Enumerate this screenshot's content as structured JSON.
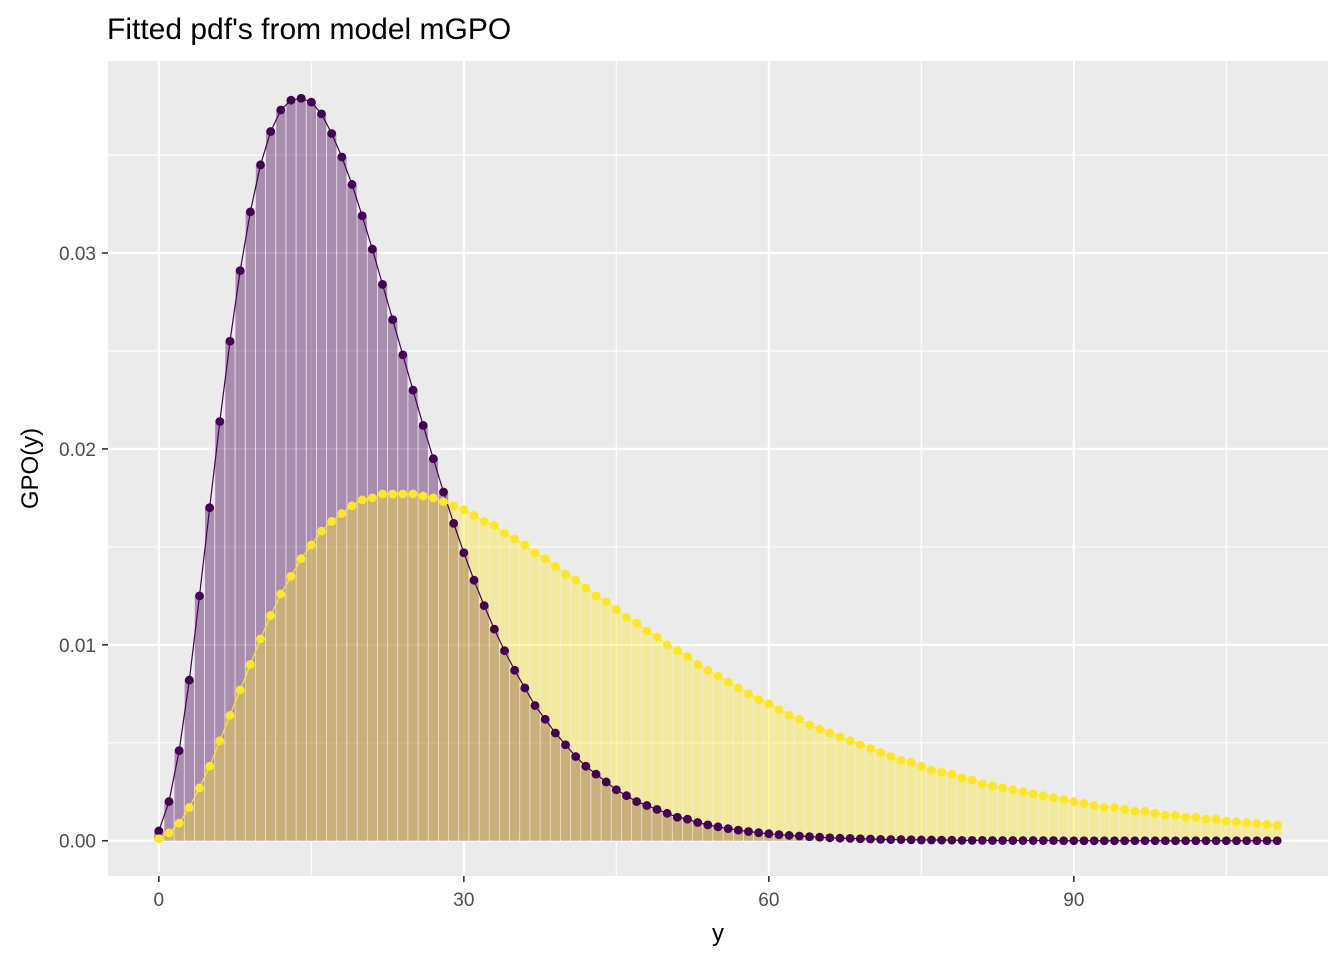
{
  "chart_data": {
    "type": "bar",
    "title": "Fitted pdf's from model mGPO",
    "xlabel": "y",
    "ylabel": "GPO(y)",
    "xlim": [
      -5,
      115
    ],
    "ylim": [
      -0.0018,
      0.0398
    ],
    "x_ticks": [
      0,
      30,
      60,
      90
    ],
    "x_tick_labels": [
      "0",
      "30",
      "60",
      "90"
    ],
    "y_ticks": [
      0.0,
      0.01,
      0.02,
      0.03
    ],
    "y_tick_labels": [
      "0.00",
      "0.01",
      "0.02",
      "0.03"
    ],
    "grid": true,
    "legend": "none",
    "x_range": [
      0,
      110
    ],
    "series": [
      {
        "color": "#440154",
        "values": [
          0.0005,
          0.002,
          0.0046,
          0.0082,
          0.0125,
          0.017,
          0.0214,
          0.0255,
          0.0291,
          0.0321,
          0.0345,
          0.0362,
          0.0373,
          0.0378,
          0.0379,
          0.0377,
          0.0371,
          0.0361,
          0.0349,
          0.0335,
          0.0319,
          0.0302,
          0.0284,
          0.0266,
          0.0248,
          0.023,
          0.0212,
          0.0195,
          0.0178,
          0.0162,
          0.0147,
          0.0133,
          0.012,
          0.0108,
          0.0097,
          0.0087,
          0.0078,
          0.0069,
          0.0062,
          0.0055,
          0.0049,
          0.0043,
          0.0038,
          0.0034,
          0.003,
          0.0026,
          0.0023,
          0.002,
          0.0018,
          0.0016,
          0.0014,
          0.0012,
          0.0011,
          0.00093,
          0.00081,
          0.00071,
          0.00062,
          0.00054,
          0.00047,
          0.00041,
          0.00036,
          0.00031,
          0.00027,
          0.00024,
          0.00021,
          0.00018,
          0.00015,
          0.00013,
          0.00012,
          0.0001,
          9e-05,
          7e-05,
          6e-05,
          6e-05,
          5e-05,
          4e-05,
          4e-05,
          3e-05,
          3e-05,
          2e-05,
          2e-05,
          2e-05,
          1e-05,
          1e-05,
          1e-05,
          1e-05,
          1e-05,
          1e-05,
          1e-05,
          0.0,
          0.0,
          0.0,
          0.0,
          0.0,
          0.0,
          0.0,
          0.0,
          0.0,
          0.0,
          0.0,
          0.0,
          0.0,
          0.0,
          0.0,
          0.0,
          0.0,
          0.0,
          0.0,
          0.0,
          0.0,
          0.0
        ]
      },
      {
        "color": "#FDE725",
        "values": [
          0.0001,
          0.0004,
          0.0009,
          0.0017,
          0.0027,
          0.0038,
          0.0051,
          0.0064,
          0.0077,
          0.009,
          0.0103,
          0.0115,
          0.0126,
          0.0135,
          0.0144,
          0.0151,
          0.0158,
          0.0163,
          0.0167,
          0.0171,
          0.0174,
          0.0175,
          0.0177,
          0.0177,
          0.0177,
          0.0177,
          0.0176,
          0.0175,
          0.0173,
          0.0171,
          0.0169,
          0.0166,
          0.0163,
          0.0161,
          0.0157,
          0.0154,
          0.0151,
          0.0147,
          0.0144,
          0.014,
          0.0136,
          0.0133,
          0.0129,
          0.0125,
          0.0122,
          0.0118,
          0.0114,
          0.0111,
          0.0107,
          0.0104,
          0.01,
          0.0097,
          0.0094,
          0.009,
          0.0087,
          0.0084,
          0.0081,
          0.0078,
          0.0075,
          0.0072,
          0.007,
          0.0067,
          0.0064,
          0.0062,
          0.0059,
          0.0057,
          0.0055,
          0.0053,
          0.0051,
          0.0049,
          0.0047,
          0.0045,
          0.0043,
          0.0041,
          0.004,
          0.0038,
          0.0036,
          0.0035,
          0.0034,
          0.0032,
          0.0031,
          0.0029,
          0.0028,
          0.0027,
          0.0026,
          0.0025,
          0.0024,
          0.0023,
          0.0022,
          0.0021,
          0.002,
          0.0019,
          0.0018,
          0.0017,
          0.0017,
          0.0016,
          0.0015,
          0.0015,
          0.0014,
          0.0013,
          0.0013,
          0.0012,
          0.0012,
          0.0011,
          0.0011,
          0.001,
          0.00097,
          0.00092,
          0.00088,
          0.00084,
          0.00079
        ]
      }
    ]
  }
}
